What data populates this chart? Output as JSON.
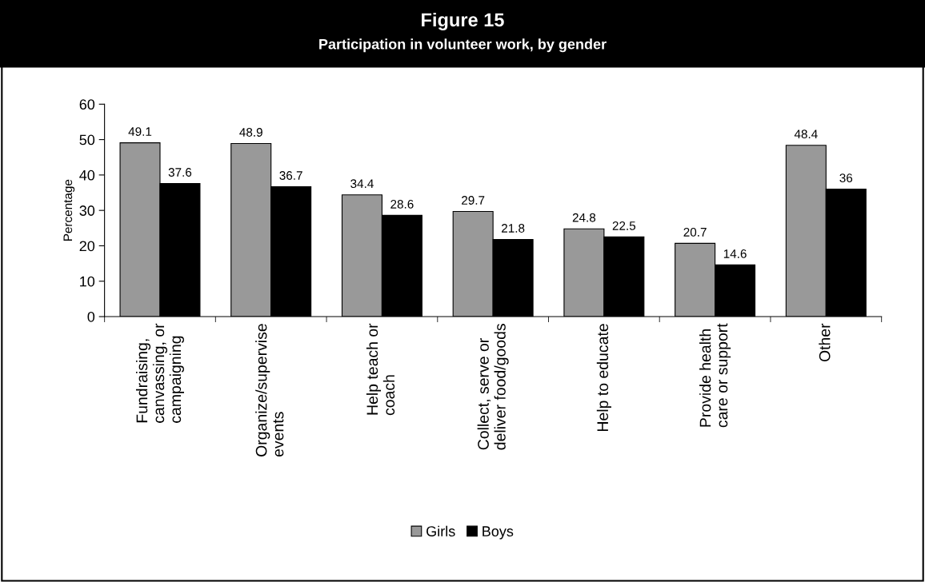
{
  "chart_data": {
    "type": "bar",
    "title": "Figure 15",
    "subtitle": "Participation in volunteer work, by gender",
    "ylabel": "Percentage",
    "categories": [
      "Fundraising,\ncanvassing, or\ncampaigning",
      "Organize/supervise\nevents",
      "Help teach or\ncoach",
      "Collect, serve or\ndeliver food/goods",
      "Help to educate",
      "Provide health\ncare or support",
      "Other"
    ],
    "series": [
      {
        "name": "Girls",
        "color": "#999999",
        "values": [
          49.1,
          48.9,
          34.4,
          29.7,
          24.8,
          20.7,
          48.4
        ]
      },
      {
        "name": "Boys",
        "color": "#000000",
        "values": [
          37.6,
          36.7,
          28.6,
          21.8,
          22.5,
          14.6,
          36
        ]
      }
    ],
    "ylim": [
      0,
      60
    ],
    "yticks": [
      0,
      10,
      20,
      30,
      40,
      50,
      60
    ],
    "grid": false,
    "legend": "bottom",
    "data_labels": true
  }
}
